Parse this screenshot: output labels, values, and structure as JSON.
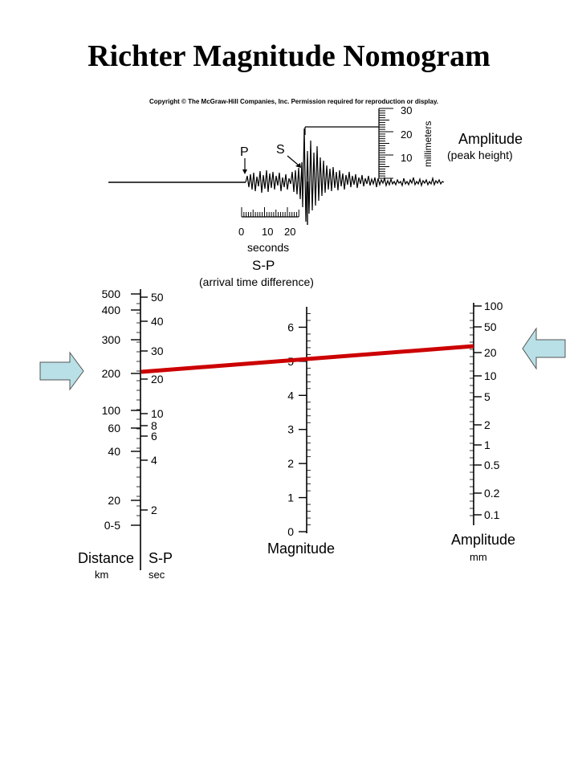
{
  "title": "Richter Magnitude Nomogram",
  "copyright": "Copyright © The McGraw-Hill Companies, Inc. Permission required for reproduction or display.",
  "seismogram": {
    "p_label": "P",
    "s_label": "S",
    "time_ticks": [
      "0",
      "10",
      "20"
    ],
    "time_unit": "seconds",
    "sp_label": "S-P",
    "sp_desc": "(arrival time difference)",
    "mm_ticks": [
      "30",
      "20",
      "10"
    ],
    "mm_unit": "millimeters",
    "amp_label": "Amplitude",
    "amp_desc": "(peak height)"
  },
  "nomogram": {
    "distance_ticks": [
      "500",
      "400",
      "300",
      "200",
      "100",
      "60",
      "40",
      "20",
      "0-5"
    ],
    "sp_ticks": [
      "50",
      "40",
      "30",
      "20",
      "10",
      "8",
      "6",
      "4",
      "2"
    ],
    "magnitude_ticks": [
      "6",
      "5",
      "4",
      "3",
      "2",
      "1",
      "0"
    ],
    "amplitude_ticks": [
      "100",
      "50",
      "20",
      "10",
      "5",
      "2",
      "1",
      "0.5",
      "0.2",
      "0.1"
    ],
    "distance_label": "Distance",
    "distance_unit": "km",
    "sp_axis_label": "S-P",
    "sp_axis_unit": "sec",
    "magnitude_label": "Magnitude",
    "amplitude_label": "Amplitude",
    "amplitude_unit": "mm",
    "reading": {
      "distance_km": 200,
      "sp_sec": 24,
      "magnitude": 5,
      "amplitude_mm": 23
    },
    "line_color": "#cc0000",
    "arrow_color": "#b8e0e6"
  }
}
